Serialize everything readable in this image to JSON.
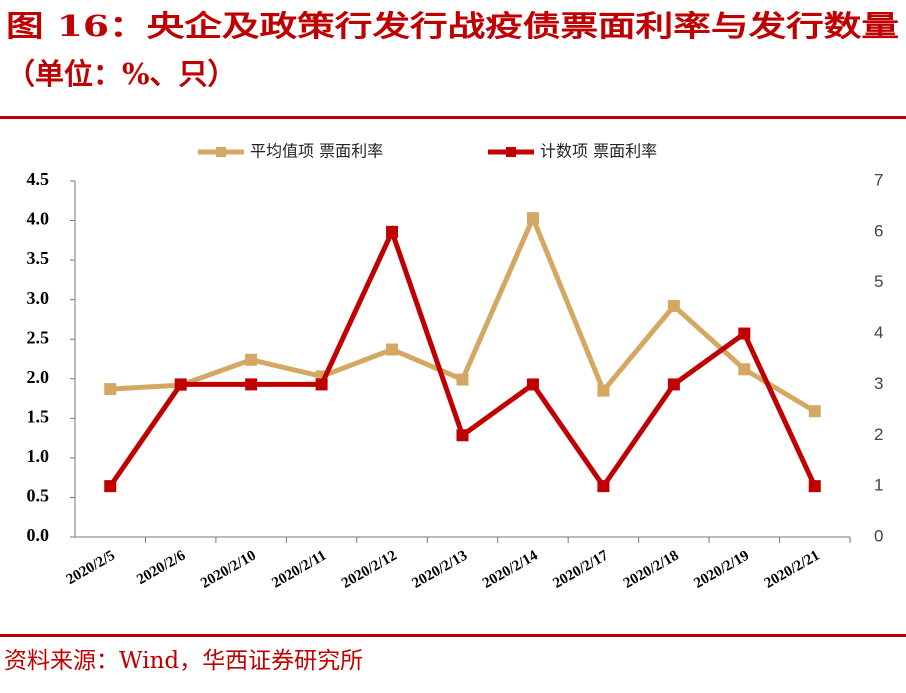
{
  "chart_data": {
    "type": "line",
    "title": "图 16：央企及政策行发行战疫债票面利率与发行数量",
    "subtitle": "（单位：%、只）",
    "source": "资料来源：Wind，华西证券研究所",
    "categories": [
      "2020/2/5",
      "2020/2/6",
      "2020/2/10",
      "2020/2/11",
      "2020/2/12",
      "2020/2/13",
      "2020/2/14",
      "2020/2/17",
      "2020/2/18",
      "2020/2/19",
      "2020/2/21"
    ],
    "series": [
      {
        "name": "平均值项 票面利率",
        "color": "#d4a862",
        "values": [
          1.87,
          1.92,
          2.24,
          2.03,
          2.37,
          1.99,
          4.03,
          1.85,
          2.92,
          2.12,
          1.59
        ]
      },
      {
        "name": "计数项 票面利率",
        "color": "#c00000",
        "axis": "y2",
        "values": [
          1,
          3,
          3,
          3,
          6,
          2,
          3,
          1,
          3,
          4,
          1
        ]
      }
    ],
    "ylim": [
      0,
      4.5
    ],
    "yticks": [
      {
        "value": 0,
        "label": "0.0"
      },
      0.5,
      {
        "value": 1,
        "label": "1.0"
      },
      1.5,
      {
        "value": 2,
        "label": "2.0"
      },
      2.5,
      {
        "value": 3,
        "label": "3.0"
      },
      3.5,
      {
        "value": 4,
        "label": "4.0"
      },
      4.5
    ],
    "y2lim": [
      0,
      7
    ],
    "y2ticks": [
      0,
      1,
      2,
      3,
      4,
      5,
      6,
      7
    ],
    "grid": false
  }
}
